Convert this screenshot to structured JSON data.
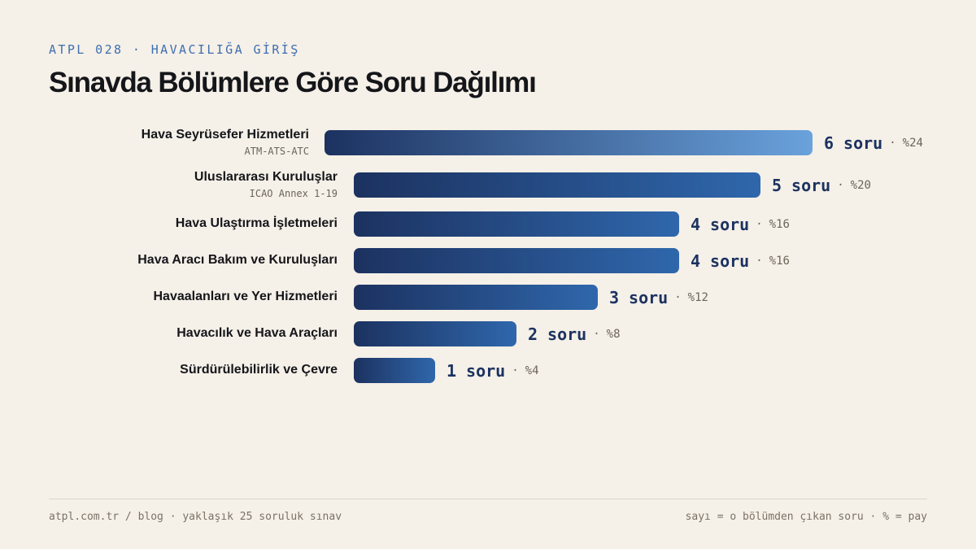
{
  "header": {
    "eyebrow": "ATPL 028 · HAVACILIĞA GİRİŞ",
    "title": "Sınavda Bölümlere Göre Soru Dağılımı"
  },
  "chart_data": {
    "type": "bar",
    "orientation": "horizontal",
    "title": "Sınavda Bölümlere Göre Soru Dağılımı",
    "unit_label": "soru",
    "categories": [
      "Hava Seyrüsefer Hizmetleri",
      "Uluslararası Kuruluşlar",
      "Hava Ulaştırma İşletmeleri",
      "Hava Aracı Bakım ve Kuruluşları",
      "Havaalanları ve Yer Hizmetleri",
      "Havacılık ve Hava Araçları",
      "Sürdürülebilirlik ve Çevre"
    ],
    "subtitles": [
      "ATM-ATS-ATC",
      "ICAO Annex 1-19",
      "",
      "",
      "",
      "",
      ""
    ],
    "values": [
      6,
      5,
      4,
      4,
      3,
      2,
      1
    ],
    "percent_labels": [
      "%24",
      "%20",
      "%16",
      "%16",
      "%12",
      "%8",
      "%4"
    ],
    "highlighted_index": 0,
    "xlim": [
      0,
      6
    ],
    "grid": false,
    "colors": {
      "bar_start": "#1c3260",
      "bar_end": "#2f67ac",
      "highlight_end": "#6aa2dc"
    }
  },
  "footer": {
    "left": "atpl.com.tr / blog · yaklaşık 25 soruluk sınav",
    "right": "sayı = o bölümden çıkan soru · % = pay"
  }
}
